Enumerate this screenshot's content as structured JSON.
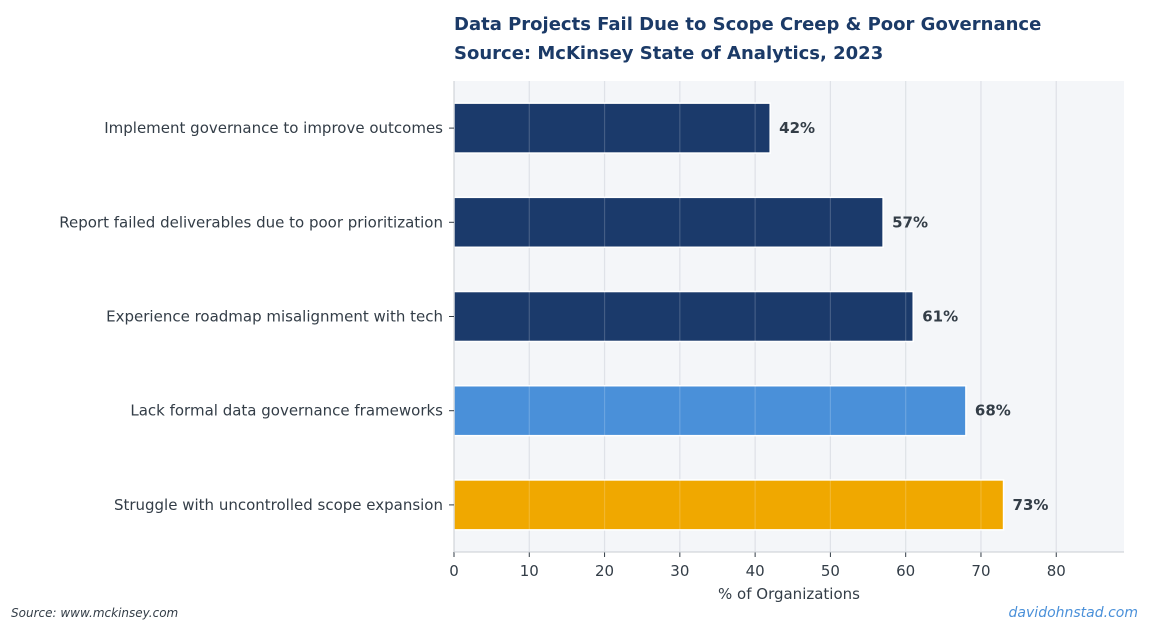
{
  "chart_data": {
    "type": "bar",
    "orientation": "horizontal",
    "title": "Data Projects Fail Due to Scope Creep & Poor Governance",
    "subtitle": "Source: McKinsey State of Analytics, 2023",
    "xlabel": "% of Organizations",
    "ylabel": "",
    "xlim": [
      0,
      89
    ],
    "xticks": [
      0,
      10,
      20,
      30,
      40,
      50,
      60,
      70,
      80
    ],
    "grid": true,
    "categories": [
      "Implement governance to improve outcomes",
      "Report failed deliverables due to poor prioritization",
      "Experience roadmap misalignment with tech",
      "Lack formal data governance frameworks",
      "Struggle with uncontrolled scope expansion"
    ],
    "values": [
      42,
      57,
      61,
      68,
      73
    ],
    "value_labels": [
      "42%",
      "57%",
      "61%",
      "68%",
      "73%"
    ],
    "colors": [
      "#1b3a6b",
      "#1b3a6b",
      "#1b3a6b",
      "#4a90d9",
      "#f0a800"
    ]
  },
  "footer": {
    "source": "Source: www.mckinsey.com",
    "credit": "davidohnstad.com"
  },
  "style": {
    "title_color": "#1b3a67",
    "plot_background": "#f4f6f9",
    "grid_color": "#d8dce3",
    "text_color": "#333d47"
  }
}
